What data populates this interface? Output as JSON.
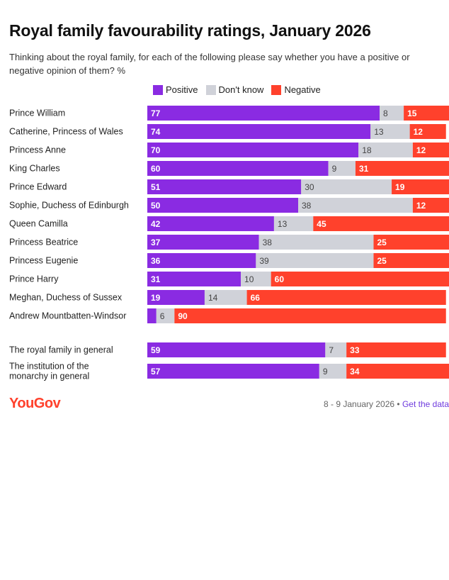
{
  "colors": {
    "positive": "#8a2be2",
    "dont_know": "#d0d2d9",
    "negative": "#ff412c",
    "brand": "#ff412c"
  },
  "chart_data": {
    "type": "bar",
    "orientation": "horizontal-stacked",
    "title": "Royal family favourability ratings, January 2026",
    "subtitle": "Thinking about the royal family, for each of the following please say whether you have a positive or negative opinion of them? %",
    "legend": [
      "Positive",
      "Don't know",
      "Negative"
    ],
    "legend_position": "top",
    "xlim": [
      0,
      100
    ],
    "groups": [
      {
        "categories": [
          "Prince William",
          "Catherine, Princess of Wales",
          "Princess Anne",
          "King Charles",
          "Prince Edward",
          "Sophie, Duchess of Edinburgh",
          "Queen Camilla",
          "Princess Beatrice",
          "Princess Eugenie",
          "Prince Harry",
          "Meghan, Duchess of Sussex",
          "Andrew Mountbatten-Windsor"
        ],
        "series": [
          {
            "name": "Positive",
            "values": [
              77,
              74,
              70,
              60,
              51,
              50,
              42,
              37,
              36,
              31,
              19,
              3
            ]
          },
          {
            "name": "Don't know",
            "values": [
              8,
              13,
              18,
              9,
              30,
              38,
              13,
              38,
              39,
              10,
              14,
              6
            ]
          },
          {
            "name": "Negative",
            "values": [
              15,
              12,
              12,
              31,
              19,
              12,
              45,
              25,
              25,
              60,
              66,
              90
            ]
          }
        ],
        "value_labels": {
          "Positive": [
            "77",
            "74",
            "70",
            "60",
            "51",
            "50",
            "42",
            "37",
            "36",
            "31",
            "19",
            ""
          ],
          "Don't know": [
            "8",
            "13",
            "18",
            "9",
            "30",
            "38",
            "13",
            "38",
            "39",
            "10",
            "14",
            "6"
          ],
          "Negative": [
            "15",
            "12",
            "12",
            "31",
            "19",
            "12",
            "45",
            "25",
            "25",
            "60",
            "66",
            "90"
          ]
        }
      },
      {
        "categories": [
          "The royal family in general",
          "The institution of the monarchy in general"
        ],
        "series": [
          {
            "name": "Positive",
            "values": [
              59,
              57
            ]
          },
          {
            "name": "Don't know",
            "values": [
              7,
              9
            ]
          },
          {
            "name": "Negative",
            "values": [
              33,
              34
            ]
          }
        ],
        "value_labels": {
          "Positive": [
            "59",
            "57"
          ],
          "Don't know": [
            "7",
            "9"
          ],
          "Negative": [
            "33",
            "34"
          ]
        }
      }
    ]
  },
  "footer": {
    "logo": "YouGov",
    "date": "8 - 9 January 2026 •",
    "link": "Get the data"
  }
}
